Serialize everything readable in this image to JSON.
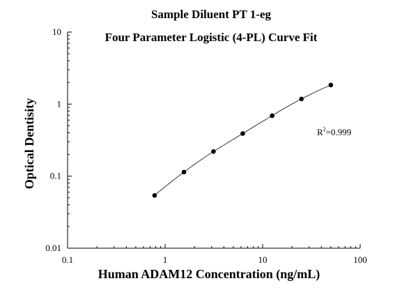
{
  "chart_data": {
    "type": "scatter",
    "title": "Sample Diluent PT 1-eg",
    "subtitle": "Four Parameter Logistic (4-PL) Curve Fit",
    "xlabel": "Human ADAM12 Concentration (ng/mL)",
    "ylabel": "Optical Dentisity",
    "x_scale": "log",
    "y_scale": "log",
    "xlim": [
      0.1,
      100
    ],
    "ylim": [
      0.01,
      10
    ],
    "x_ticks": [
      "0.1",
      "1",
      "10",
      "100"
    ],
    "y_ticks": [
      "0.01",
      "0.1",
      "1",
      "10"
    ],
    "grid": false,
    "points": {
      "x": [
        0.78,
        1.56,
        3.13,
        6.25,
        12.5,
        25,
        50
      ],
      "y": [
        0.054,
        0.114,
        0.22,
        0.39,
        0.69,
        1.18,
        1.84
      ]
    },
    "fit": {
      "model": "4-PL",
      "r2_label": "R",
      "r2_sup": "2",
      "r2_value": "=0.999"
    }
  }
}
